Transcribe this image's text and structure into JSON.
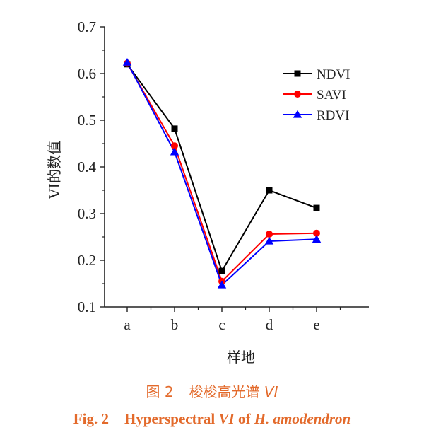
{
  "chart_data": {
    "type": "line",
    "categories": [
      "a",
      "b",
      "c",
      "d",
      "e"
    ],
    "series": [
      {
        "name": "NDVI",
        "values": [
          0.62,
          0.482,
          0.177,
          0.35,
          0.312
        ],
        "color": "#000000",
        "marker": "square"
      },
      {
        "name": "SAVI",
        "values": [
          0.622,
          0.445,
          0.155,
          0.256,
          0.258
        ],
        "color": "#ff0000",
        "marker": "circle"
      },
      {
        "name": "RDVI",
        "values": [
          0.624,
          0.432,
          0.147,
          0.241,
          0.245
        ],
        "color": "#0000ff",
        "marker": "triangle"
      }
    ],
    "xlabel": "样地",
    "ylabel": "VI的数值",
    "ylim": [
      0.1,
      0.7
    ],
    "yticks": [
      "0.1",
      "0.2",
      "0.3",
      "0.4",
      "0.5",
      "0.6",
      "0.7"
    ],
    "legend_position": "top-right",
    "grid": false
  },
  "caption": {
    "cn_figure": "图 2",
    "cn_title": "梭梭高光谱",
    "cn_italic": "VI",
    "en_figure": "Fig. 2",
    "en_title_1": "Hyperspectral",
    "en_italic_1": "VI",
    "en_title_2": "of",
    "en_italic_2": "H. amodendron"
  },
  "colors": {
    "caption": "#e36a2b",
    "axis": "#222222"
  }
}
